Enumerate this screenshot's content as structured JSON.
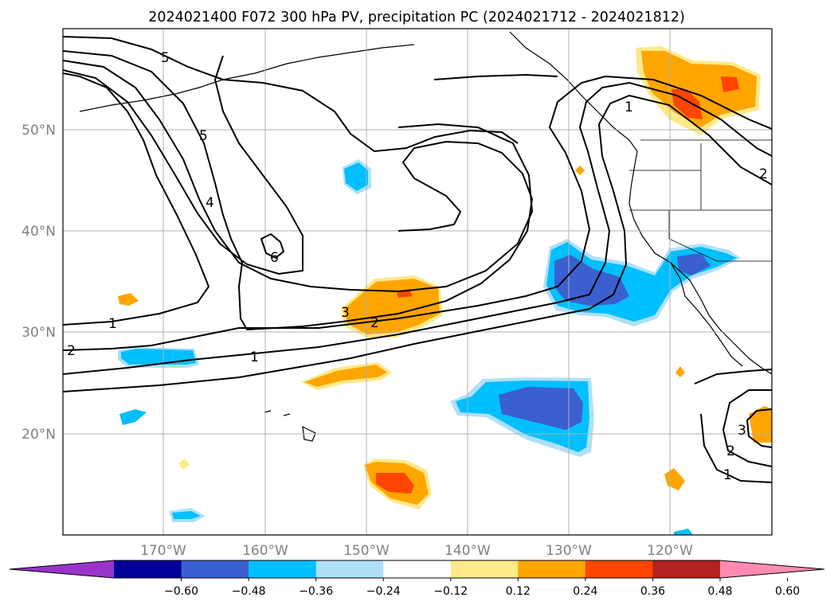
{
  "title": "2024021400 F072 300 hPa PV, precipitation PC (2024021712 - 2024021812)",
  "map": {
    "lat_ticks": [
      {
        "value": 50,
        "label": "50°N"
      },
      {
        "value": 40,
        "label": "40°N"
      },
      {
        "value": 30,
        "label": "30°N"
      },
      {
        "value": 20,
        "label": "20°N"
      }
    ],
    "lon_ticks": [
      {
        "value": -170,
        "label": "170°W"
      },
      {
        "value": -160,
        "label": "160°W"
      },
      {
        "value": -150,
        "label": "150°W"
      },
      {
        "value": -140,
        "label": "140°W"
      },
      {
        "value": -130,
        "label": "130°W"
      },
      {
        "value": -120,
        "label": "120°W"
      }
    ],
    "pv_contour_labels": [
      "1",
      "2",
      "3",
      "4",
      "5",
      "6"
    ]
  },
  "colorbar": {
    "colors": [
      "#9933cc",
      "#000099",
      "#3b5fcf",
      "#00bfff",
      "#b0e0f8",
      "#ffffff",
      "#ffe98a",
      "#ffa500",
      "#ff4500",
      "#b22222",
      "#ff8cb0"
    ],
    "tick_labels": [
      "−0.60",
      "−0.48",
      "−0.36",
      "−0.24",
      "−0.12",
      "0.12",
      "0.24",
      "0.36",
      "0.48",
      "0.60"
    ]
  }
}
